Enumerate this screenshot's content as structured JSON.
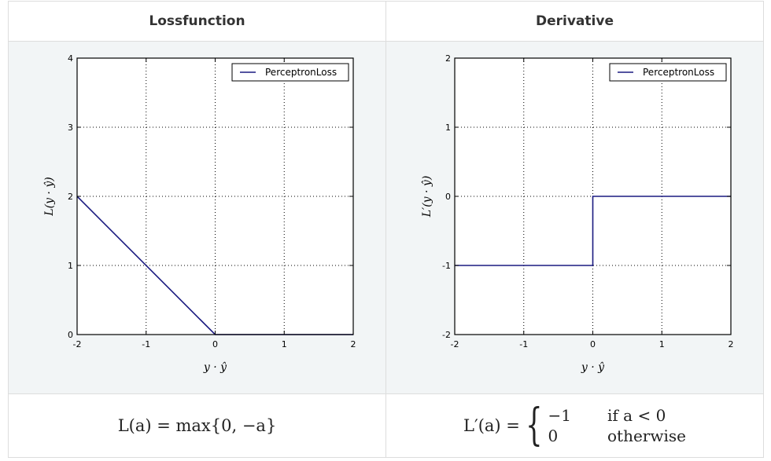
{
  "columns": [
    {
      "header": "Lossfunction",
      "formula": "L(a) = max{0, −a}"
    },
    {
      "header": "Derivative",
      "formula_lhs": "L′(a) =",
      "cases": [
        {
          "value": "−1",
          "condition": "if a < 0"
        },
        {
          "value": "0",
          "condition": "otherwise"
        }
      ]
    }
  ],
  "chart_data": [
    {
      "type": "line",
      "title": "",
      "xlabel": "y · ŷ",
      "ylabel": "L(y · ŷ)",
      "xlim": [
        -2,
        2
      ],
      "ylim": [
        0,
        4
      ],
      "xticks": [
        "-2",
        "-1",
        "0",
        "1",
        "2"
      ],
      "yticks": [
        "0",
        "1",
        "2",
        "3",
        "4"
      ],
      "grid": true,
      "legend_position": "top-right",
      "series": [
        {
          "name": "PerceptronLoss",
          "color": "#1a1a80",
          "x": [
            -2,
            0,
            2
          ],
          "y": [
            2,
            0,
            0
          ]
        }
      ]
    },
    {
      "type": "line",
      "title": "",
      "xlabel": "y · ŷ",
      "ylabel": "L′(y · ŷ)",
      "xlim": [
        -2,
        2
      ],
      "ylim": [
        -2,
        2
      ],
      "xticks": [
        "-2",
        "-1",
        "0",
        "1",
        "2"
      ],
      "yticks": [
        "-2",
        "-1",
        "0",
        "1",
        "2"
      ],
      "grid": true,
      "legend_position": "top-right",
      "series": [
        {
          "name": "PerceptronLoss",
          "color": "#1a1a80",
          "x": [
            -2,
            0,
            0,
            2
          ],
          "y": [
            -1,
            -1,
            0,
            0
          ]
        }
      ]
    }
  ]
}
